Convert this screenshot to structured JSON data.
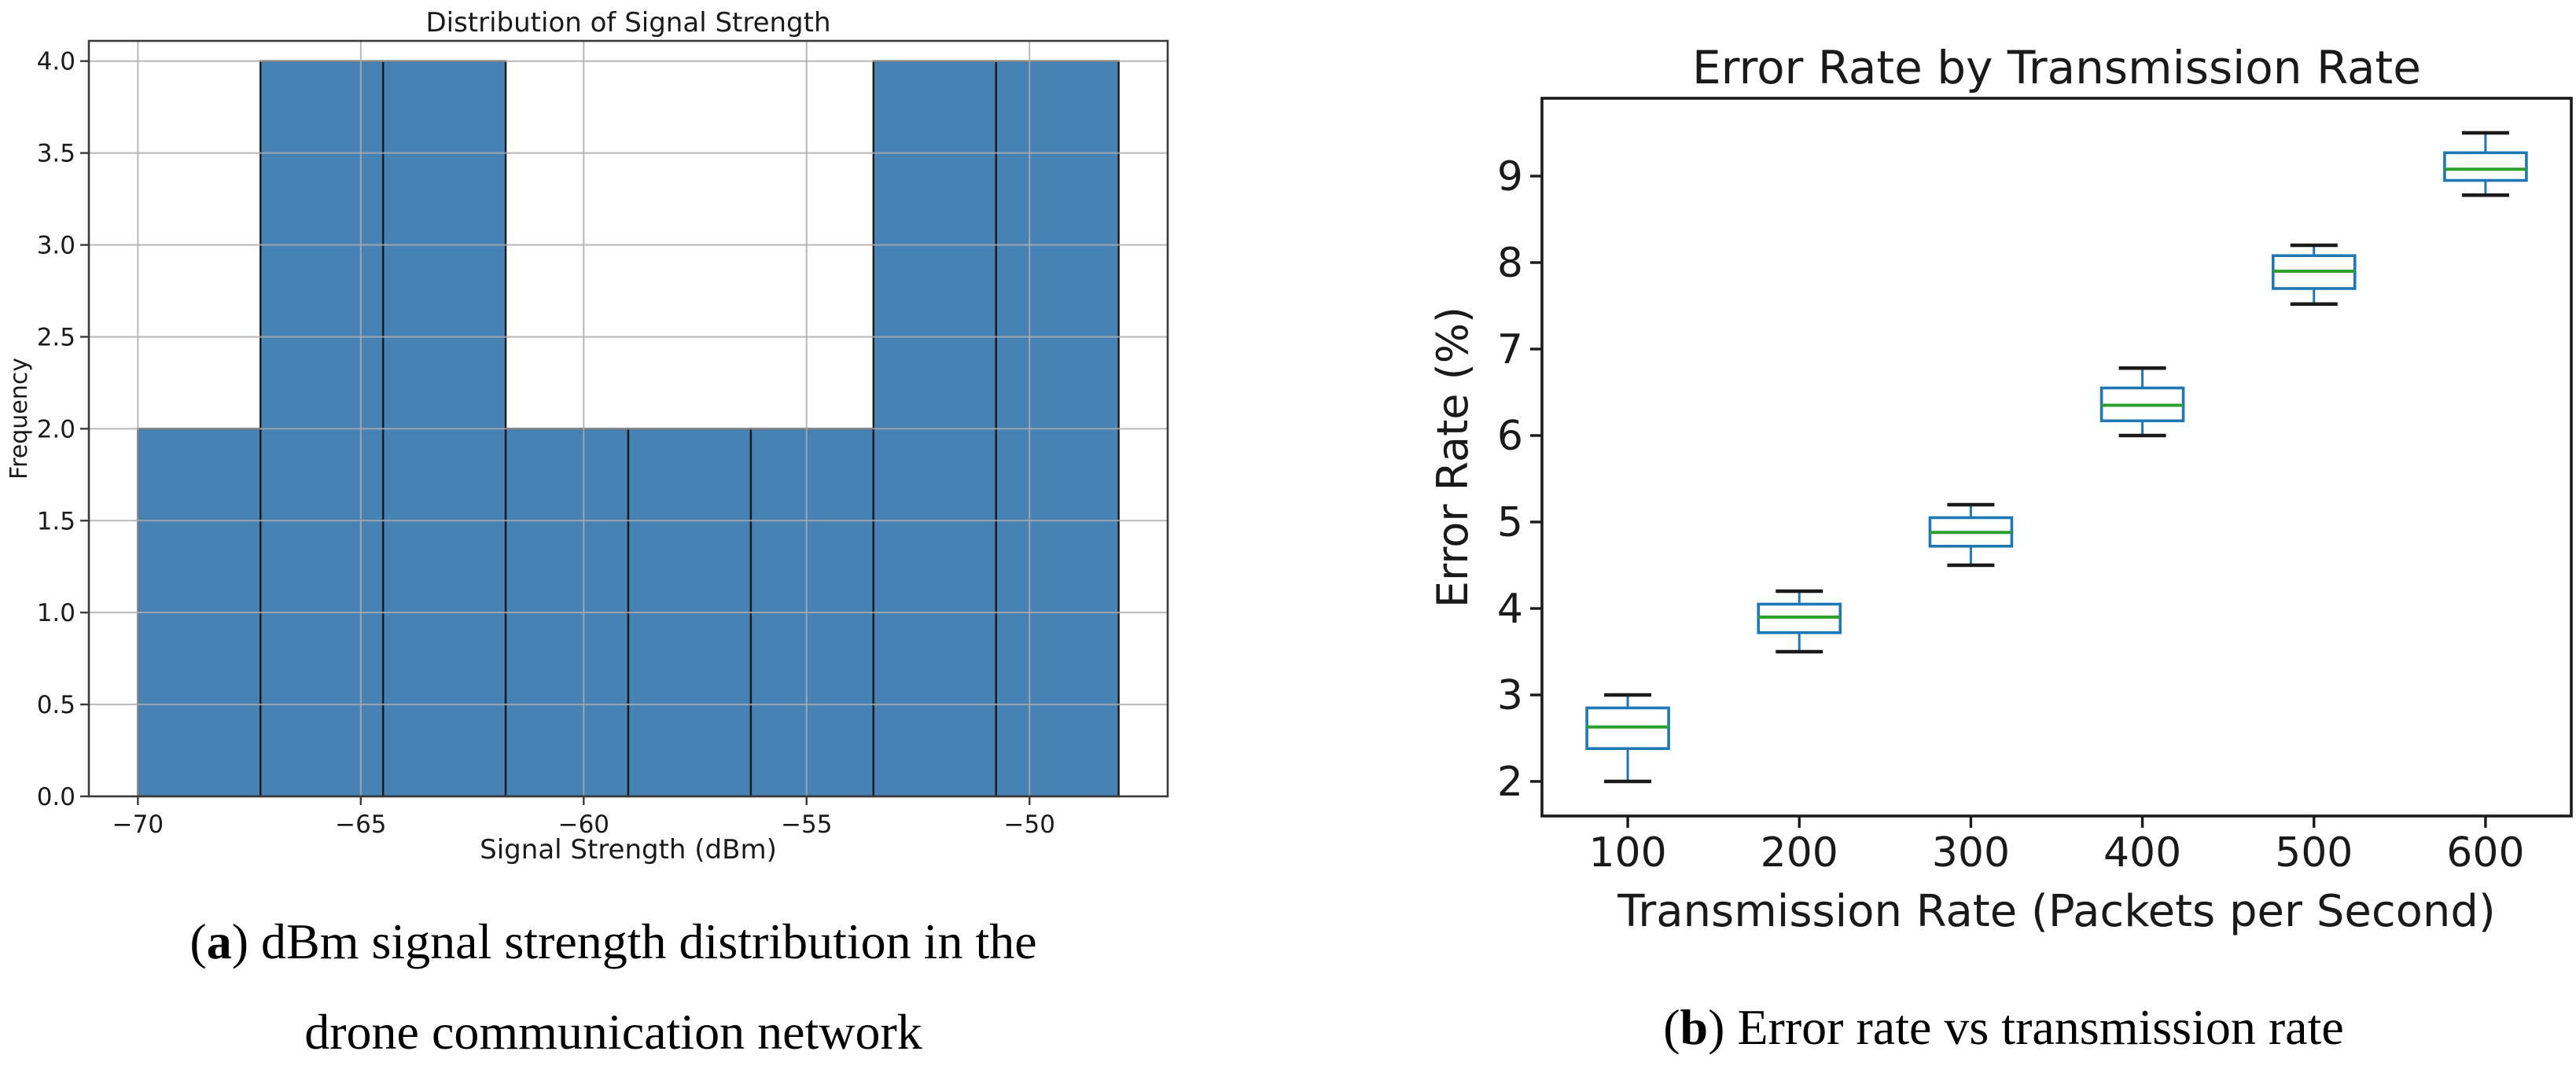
{
  "page": {
    "background": "#ffffff"
  },
  "chart_data": [
    {
      "id": "a",
      "type": "bar",
      "subtype": "histogram",
      "title": "Distribution of Signal Strength",
      "xlabel": "Signal Strength (dBm)",
      "ylabel": "Frequency",
      "bin_edges": [
        -70.0,
        -67.25,
        -64.5,
        -61.75,
        -59.0,
        -56.25,
        -53.5,
        -50.75,
        -48.0
      ],
      "counts": [
        2,
        4,
        4,
        2,
        2,
        2,
        4,
        4
      ],
      "xlim": [
        -71.1,
        -46.9
      ],
      "ylim": [
        0,
        4.11
      ],
      "xticks": {
        "values": [
          -70,
          -65,
          -60,
          -55,
          -50
        ],
        "labels": [
          "−70",
          "−65",
          "−60",
          "−55",
          "−50"
        ]
      },
      "yticks": {
        "values": [
          0,
          0.5,
          1.0,
          1.5,
          2.0,
          2.5,
          3.0,
          3.5,
          4.0
        ],
        "labels": [
          "0.0",
          "0.5",
          "1.0",
          "1.5",
          "2.0",
          "2.5",
          "3.0",
          "3.5",
          "4.0"
        ]
      },
      "grid": true,
      "legend": null,
      "colors": {
        "bar_fill": "#4682b4",
        "bar_edge": "#1a1a1a",
        "grid": "#ababab",
        "spine": "#3a3a3a",
        "text": "#1a1a1a"
      }
    },
    {
      "id": "b",
      "type": "box",
      "title": "Error Rate by Transmission Rate",
      "xlabel": "Transmission Rate (Packets per Second)",
      "ylabel": "Error Rate (%)",
      "categories": [
        "100",
        "200",
        "300",
        "400",
        "500",
        "600"
      ],
      "ylim": [
        1.6,
        9.9
      ],
      "yticks": {
        "values": [
          2,
          3,
          4,
          5,
          6,
          7,
          8,
          9
        ],
        "labels": [
          "2",
          "3",
          "4",
          "5",
          "6",
          "7",
          "8",
          "9"
        ]
      },
      "grid": false,
      "legend": null,
      "boxes": [
        {
          "category": "100",
          "whislo": 2.0,
          "q1": 2.38,
          "med": 2.63,
          "q3": 2.85,
          "whishi": 3.0
        },
        {
          "category": "200",
          "whislo": 3.5,
          "q1": 3.72,
          "med": 3.9,
          "q3": 4.05,
          "whishi": 4.2
        },
        {
          "category": "300",
          "whislo": 4.5,
          "q1": 4.72,
          "med": 4.88,
          "q3": 5.05,
          "whishi": 5.2
        },
        {
          "category": "400",
          "whislo": 6.0,
          "q1": 6.17,
          "med": 6.35,
          "q3": 6.55,
          "whishi": 6.78
        },
        {
          "category": "500",
          "whislo": 7.52,
          "q1": 7.7,
          "med": 7.9,
          "q3": 8.08,
          "whishi": 8.2
        },
        {
          "category": "600",
          "whislo": 8.78,
          "q1": 8.95,
          "med": 9.08,
          "q3": 9.27,
          "whishi": 9.5
        }
      ],
      "colors": {
        "box": "#1f77b4",
        "median": "#2ca02c",
        "whisker": "#1f77b4",
        "cap": "#1a1a1a",
        "spine": "#1a1a1a",
        "text": "#1a1a1a"
      }
    }
  ],
  "captions": {
    "a": {
      "open": "(",
      "letter": "a",
      "close": ")",
      "text": " dBm signal strength distribution in the",
      "line2": "drone communication network"
    },
    "b": {
      "open": "(",
      "letter": "b",
      "close": ")",
      "text": " Error rate vs transmission rate"
    }
  }
}
